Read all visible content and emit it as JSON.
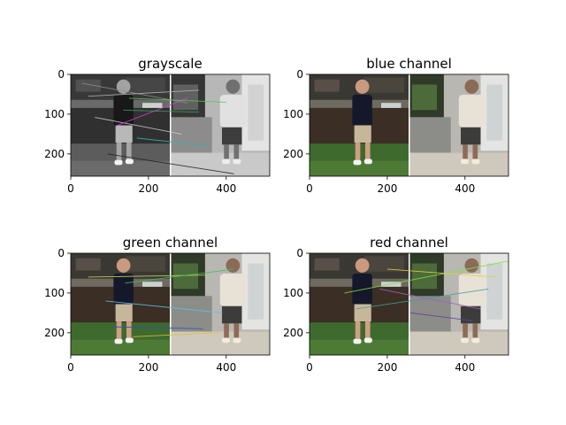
{
  "figure": {
    "background": "#ffffff"
  },
  "chart_data": [
    {
      "type": "image",
      "title": "grayscale",
      "xlim": [
        0,
        512
      ],
      "ylim": [
        256,
        0
      ],
      "xticks": [
        "0",
        "200",
        "400"
      ],
      "yticks": [
        "0",
        "100",
        "200"
      ],
      "xtick_values": [
        0,
        200,
        400
      ],
      "ytick_values": [
        0,
        100,
        200
      ],
      "match_lines": [
        {
          "x1": 28,
          "y1": 22,
          "x2": 300,
          "y2": 72,
          "color": "#8c8c8c"
        },
        {
          "x1": 45,
          "y1": 55,
          "x2": 330,
          "y2": 40,
          "color": "#b0b0b0"
        },
        {
          "x1": 62,
          "y1": 108,
          "x2": 285,
          "y2": 150,
          "color": "#c8c8c8"
        },
        {
          "x1": 95,
          "y1": 200,
          "x2": 420,
          "y2": 250,
          "color": "#222222"
        },
        {
          "x1": 115,
          "y1": 130,
          "x2": 300,
          "y2": 60,
          "color": "#d040d0"
        },
        {
          "x1": 135,
          "y1": 90,
          "x2": 330,
          "y2": 95,
          "color": "#40a060"
        },
        {
          "x1": 150,
          "y1": 60,
          "x2": 400,
          "y2": 70,
          "color": "#60c060"
        },
        {
          "x1": 170,
          "y1": 160,
          "x2": 355,
          "y2": 180,
          "color": "#30b0b0"
        }
      ]
    },
    {
      "type": "image",
      "title": "blue channel",
      "xlim": [
        0,
        512
      ],
      "ylim": [
        256,
        0
      ],
      "xticks": [
        "0",
        "200",
        "400"
      ],
      "yticks": [
        "0",
        "100",
        "200"
      ],
      "xtick_values": [
        0,
        200,
        400
      ],
      "ytick_values": [
        0,
        100,
        200
      ],
      "match_lines": []
    },
    {
      "type": "image",
      "title": "green channel",
      "xlim": [
        0,
        512
      ],
      "ylim": [
        256,
        0
      ],
      "xticks": [
        "0",
        "200",
        "400"
      ],
      "yticks": [
        "0",
        "100",
        "200"
      ],
      "xtick_values": [
        0,
        200,
        400
      ],
      "ytick_values": [
        0,
        100,
        200
      ],
      "match_lines": [
        {
          "x1": 45,
          "y1": 60,
          "x2": 350,
          "y2": 55,
          "color": "#c8d050"
        },
        {
          "x1": 90,
          "y1": 120,
          "x2": 390,
          "y2": 150,
          "color": "#60c0e0"
        },
        {
          "x1": 140,
          "y1": 75,
          "x2": 420,
          "y2": 40,
          "color": "#40c060"
        },
        {
          "x1": 105,
          "y1": 185,
          "x2": 340,
          "y2": 190,
          "color": "#3050c0"
        },
        {
          "x1": 160,
          "y1": 210,
          "x2": 380,
          "y2": 200,
          "color": "#e0c030"
        }
      ]
    },
    {
      "type": "image",
      "title": "red channel",
      "xlim": [
        0,
        512
      ],
      "ylim": [
        256,
        0
      ],
      "xticks": [
        "0",
        "200",
        "400"
      ],
      "yticks": [
        "0",
        "100",
        "200"
      ],
      "xtick_values": [
        0,
        200,
        400
      ],
      "ytick_values": [
        0,
        100,
        200
      ],
      "match_lines": [
        {
          "x1": 90,
          "y1": 100,
          "x2": 510,
          "y2": 20,
          "color": "#80e040"
        },
        {
          "x1": 120,
          "y1": 140,
          "x2": 460,
          "y2": 90,
          "color": "#40a0a0"
        },
        {
          "x1": 180,
          "y1": 90,
          "x2": 440,
          "y2": 140,
          "color": "#a060c0"
        },
        {
          "x1": 260,
          "y1": 150,
          "x2": 420,
          "y2": 170,
          "color": "#6040a0"
        },
        {
          "x1": 200,
          "y1": 40,
          "x2": 480,
          "y2": 60,
          "color": "#e0d040"
        }
      ]
    }
  ]
}
